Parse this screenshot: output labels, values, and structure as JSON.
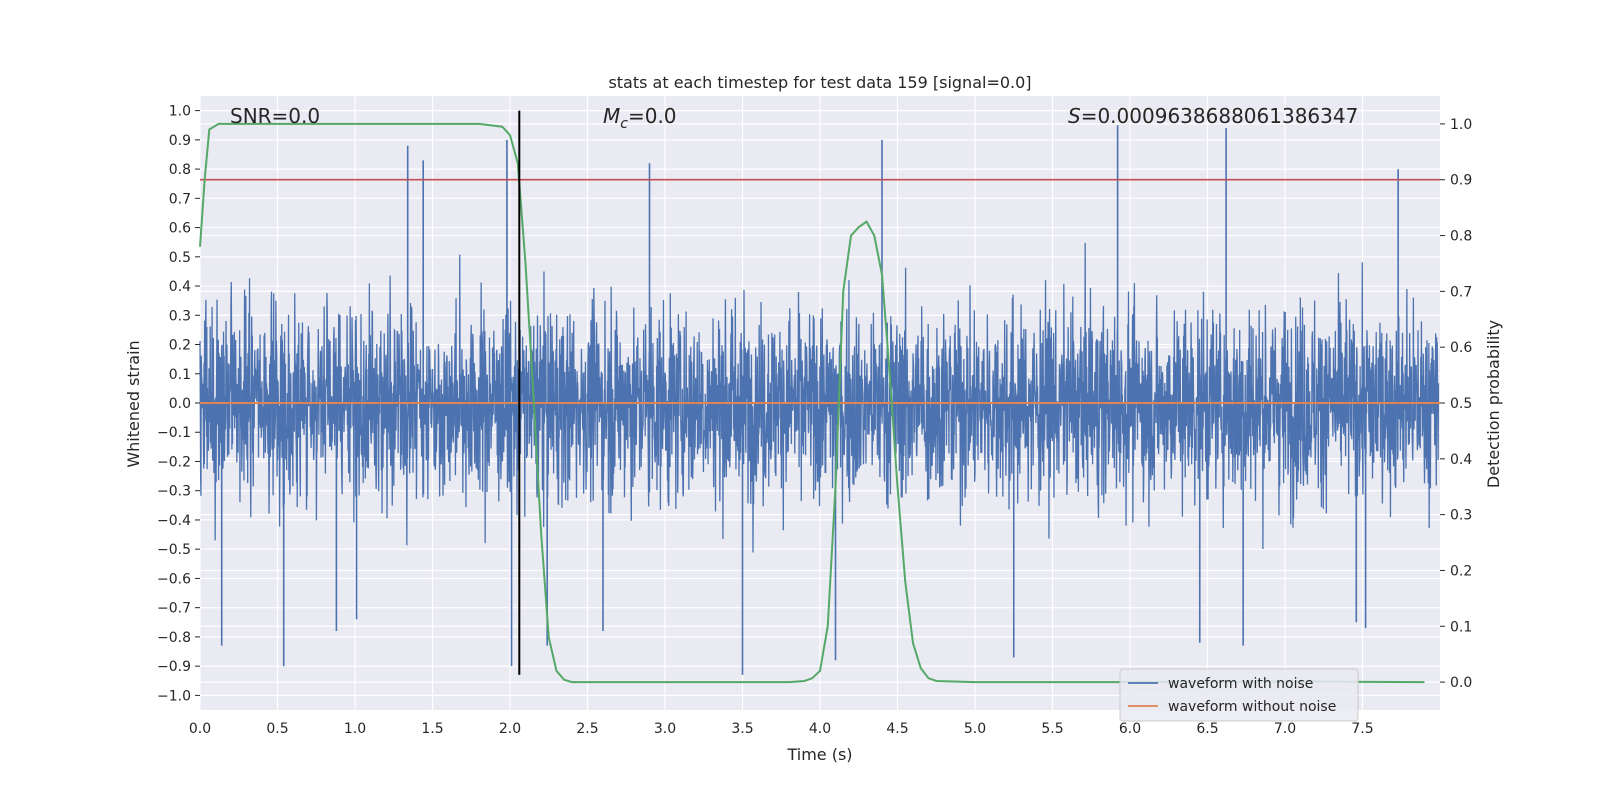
{
  "chart_data": {
    "type": "line",
    "title": "stats at each timestep for test data 159 [signal=0.0]",
    "xlabel": "Time (s)",
    "ylabel": "Whitened strain",
    "y2label": "Detection probability",
    "xlim": [
      0.0,
      8.0
    ],
    "ylim": [
      -1.05,
      1.05
    ],
    "y2lim": [
      -0.05,
      1.05
    ],
    "xticks": [
      0.0,
      0.5,
      1.0,
      1.5,
      2.0,
      2.5,
      3.0,
      3.5,
      4.0,
      4.5,
      5.0,
      5.5,
      6.0,
      6.5,
      7.0,
      7.5
    ],
    "yticks": [
      -1.0,
      -0.9,
      -0.8,
      -0.7,
      -0.6,
      -0.5,
      -0.4,
      -0.3,
      -0.2,
      -0.1,
      0.0,
      0.1,
      0.2,
      0.3,
      0.4,
      0.5,
      0.6,
      0.7,
      0.8,
      0.9,
      1.0
    ],
    "y2ticks": [
      0.0,
      0.1,
      0.2,
      0.3,
      0.4,
      0.5,
      0.6,
      0.7,
      0.8,
      0.9,
      1.0
    ],
    "grid": true,
    "legend_position": "bottom-right",
    "annotations": {
      "snr": "SNR=0.0",
      "mc": "M_c=0.0",
      "mc_symbol": "M",
      "mc_subscript": "c",
      "mc_value": "=0.0",
      "s_symbol": "S",
      "s_value": "=0.0009638688061386347"
    },
    "threshold": {
      "value": 0.9,
      "axis": "y2",
      "color": "#c44e52"
    },
    "vline": {
      "x": 2.06,
      "ymin": -0.93,
      "ymax": 1.0,
      "color": "#000000"
    },
    "series": [
      {
        "name": "waveform with noise",
        "color": "#4c72b0",
        "axis": "y",
        "description": "noise-dominated whitened strain, dense between about -0.45 and 0.45 with spikes",
        "spikes": [
          {
            "x": 0.14,
            "y": -0.83
          },
          {
            "x": 0.54,
            "y": -0.9
          },
          {
            "x": 0.88,
            "y": -0.78
          },
          {
            "x": 1.01,
            "y": -0.74
          },
          {
            "x": 1.34,
            "y": 0.88
          },
          {
            "x": 1.44,
            "y": 0.83
          },
          {
            "x": 1.98,
            "y": 0.9
          },
          {
            "x": 2.01,
            "y": -0.9
          },
          {
            "x": 2.24,
            "y": -0.83
          },
          {
            "x": 2.6,
            "y": -0.78
          },
          {
            "x": 2.9,
            "y": 0.82
          },
          {
            "x": 3.5,
            "y": -0.93
          },
          {
            "x": 4.1,
            "y": -0.88
          },
          {
            "x": 4.4,
            "y": 0.9
          },
          {
            "x": 5.25,
            "y": -0.87
          },
          {
            "x": 5.92,
            "y": 0.95
          },
          {
            "x": 6.62,
            "y": 0.94
          },
          {
            "x": 6.45,
            "y": -0.82
          },
          {
            "x": 6.73,
            "y": -0.83
          },
          {
            "x": 7.46,
            "y": -0.75
          },
          {
            "x": 7.52,
            "y": -0.77
          },
          {
            "x": 7.73,
            "y": 0.8
          }
        ]
      },
      {
        "name": "waveform without noise",
        "color": "#dd8452",
        "axis": "y",
        "x": [
          0.0,
          8.0
        ],
        "y": [
          0.0,
          0.0
        ]
      },
      {
        "name": "detection probability",
        "color": "#55a868",
        "axis": "y2",
        "x": [
          0.0,
          0.03,
          0.06,
          0.12,
          0.25,
          0.5,
          1.0,
          1.5,
          1.8,
          1.95,
          2.0,
          2.05,
          2.1,
          2.15,
          2.2,
          2.25,
          2.3,
          2.35,
          2.4,
          2.5,
          3.0,
          3.5,
          3.8,
          3.9,
          3.95,
          4.0,
          4.05,
          4.1,
          4.15,
          4.2,
          4.25,
          4.3,
          4.35,
          4.4,
          4.45,
          4.5,
          4.55,
          4.6,
          4.65,
          4.7,
          4.75,
          5.0,
          6.0,
          7.0,
          7.9
        ],
        "y": [
          0.78,
          0.9,
          0.99,
          1.0,
          1.0,
          1.0,
          1.0,
          1.0,
          1.0,
          0.995,
          0.98,
          0.93,
          0.75,
          0.52,
          0.27,
          0.08,
          0.02,
          0.004,
          0.0,
          0.0,
          0.0,
          0.0,
          0.0,
          0.002,
          0.007,
          0.02,
          0.1,
          0.35,
          0.7,
          0.8,
          0.815,
          0.825,
          0.8,
          0.73,
          0.55,
          0.35,
          0.18,
          0.07,
          0.025,
          0.007,
          0.002,
          0.0,
          0.0,
          0.001,
          0.0
        ]
      }
    ]
  }
}
